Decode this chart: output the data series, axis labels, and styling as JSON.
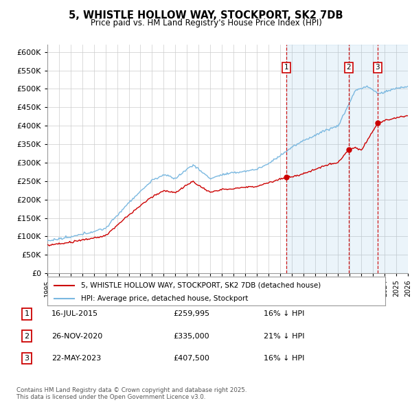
{
  "title": "5, WHISTLE HOLLOW WAY, STOCKPORT, SK2 7DB",
  "subtitle": "Price paid vs. HM Land Registry's House Price Index (HPI)",
  "hpi_label": "HPI: Average price, detached house, Stockport",
  "price_label": "5, WHISTLE HOLLOW WAY, STOCKPORT, SK2 7DB (detached house)",
  "hpi_color": "#7ab8e0",
  "hpi_fill_color": "#d6eaf8",
  "price_color": "#cc0000",
  "dashed_color": "#cc0000",
  "background_color": "#ffffff",
  "grid_color": "#cccccc",
  "ylim": [
    0,
    620000
  ],
  "ytick_step": 50000,
  "transactions": [
    {
      "num": 1,
      "date": "16-JUL-2015",
      "price": "£259,995",
      "pct": "16% ↓ HPI",
      "x_year": 2015.54
    },
    {
      "num": 2,
      "date": "26-NOV-2020",
      "price": "£335,000",
      "pct": "21% ↓ HPI",
      "x_year": 2020.9
    },
    {
      "num": 3,
      "date": "22-MAY-2023",
      "price": "£407,500",
      "pct": "16% ↓ HPI",
      "x_year": 2023.39
    }
  ],
  "footnote": "Contains HM Land Registry data © Crown copyright and database right 2025.\nThis data is licensed under the Open Government Licence v3.0.",
  "xlim_start": 1995.0,
  "xlim_end": 2026.0
}
